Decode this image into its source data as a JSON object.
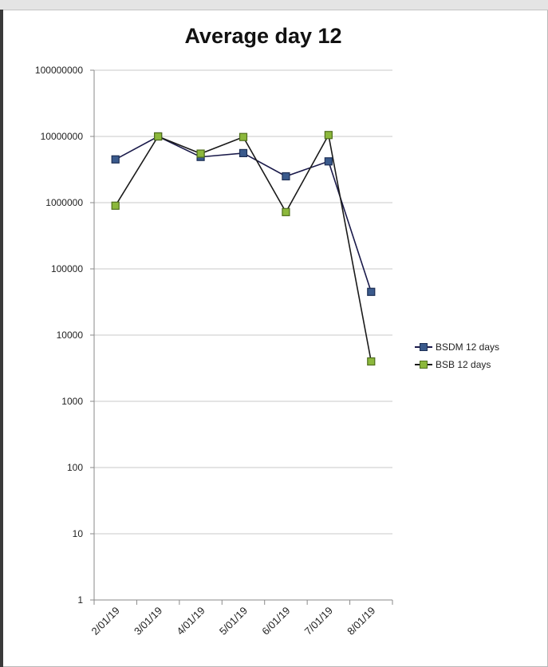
{
  "chart_data": {
    "type": "line",
    "title": "Average day 12",
    "xlabel": "",
    "ylabel": "",
    "y_scale": "log",
    "ylim": [
      1,
      100000000
    ],
    "y_ticks": [
      "100000000",
      "10000000",
      "1000000",
      "100000",
      "10000",
      "1000",
      "100",
      "10",
      "1"
    ],
    "categories": [
      "2/01/19",
      "3/01/19",
      "4/01/19",
      "5/01/19",
      "6/01/19",
      "7/01/19",
      "8/01/19"
    ],
    "grid": "horizontal",
    "legend_position": "right",
    "series": [
      {
        "name": "BSDM 12 days",
        "values": [
          4500000,
          10000000,
          4900000,
          5600000,
          2500000,
          4200000,
          45000
        ],
        "color": "#3a5a8c",
        "marker": "square"
      },
      {
        "name": "BSB 12 days",
        "values": [
          900000,
          10000000,
          5500000,
          9800000,
          720000,
          10500000,
          4000
        ],
        "color": "#8cb83c",
        "marker": "square"
      }
    ]
  },
  "colors": {
    "gridline": "#c8c8c8",
    "axis": "#8a8a8a",
    "line": "#000000"
  }
}
